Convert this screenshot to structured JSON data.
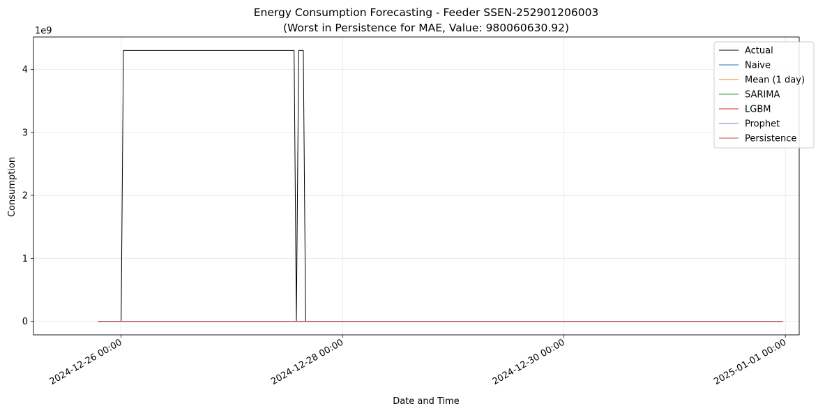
{
  "chart_data": {
    "type": "line",
    "title": "Energy Consumption Forecasting - Feeder SSEN-252901206003",
    "subtitle": "(Worst in Persistence for MAE, Value: 980060630.92)",
    "xlabel": "Date and Time",
    "ylabel": "Consumption",
    "y_offset_label": "1e9",
    "x_range": [
      "2024-12-25 05:00",
      "2025-01-01 03:00"
    ],
    "ylim": [
      -0.215,
      4.515
    ],
    "y_ticks": [
      0,
      1,
      2,
      3,
      4
    ],
    "x_ticks": [
      {
        "value": "2024-12-26 00:00",
        "label": "2024-12-26 00:00"
      },
      {
        "value": "2024-12-28 00:00",
        "label": "2024-12-28 00:00"
      },
      {
        "value": "2024-12-30 00:00",
        "label": "2024-12-30 00:00"
      },
      {
        "value": "2025-01-01 00:00",
        "label": "2025-01-01 00:00"
      }
    ],
    "grid": true,
    "legend_position": "top-right",
    "series": [
      {
        "name": "Actual",
        "color": "#000000",
        "points": [
          [
            "2024-12-25 19:00",
            0
          ],
          [
            "2024-12-26 00:00",
            0
          ],
          [
            "2024-12-26 00:30",
            4.3
          ],
          [
            "2024-12-27 13:30",
            4.3
          ],
          [
            "2024-12-27 14:00",
            0
          ],
          [
            "2024-12-27 14:30",
            4.3
          ],
          [
            "2024-12-27 15:30",
            4.3
          ],
          [
            "2024-12-27 16:00",
            0
          ],
          [
            "2024-12-31 23:30",
            0
          ]
        ]
      },
      {
        "name": "Naive",
        "color": "#1f77b4",
        "points": [
          [
            "2024-12-25 19:00",
            0
          ],
          [
            "2024-12-31 23:30",
            0
          ]
        ]
      },
      {
        "name": "Mean (1 day)",
        "color": "#ff7f0e",
        "points": [
          [
            "2024-12-25 19:00",
            0
          ],
          [
            "2024-12-31 23:30",
            0
          ]
        ]
      },
      {
        "name": "SARIMA",
        "color": "#2ca02c",
        "points": [
          [
            "2024-12-25 19:00",
            0
          ],
          [
            "2024-12-31 23:30",
            0
          ]
        ]
      },
      {
        "name": "LGBM",
        "color": "#d62728",
        "points": [
          [
            "2024-12-25 19:00",
            0
          ],
          [
            "2024-12-31 23:30",
            0
          ]
        ]
      },
      {
        "name": "Prophet",
        "color": "#9467bd",
        "points": [
          [
            "2024-12-25 19:00",
            0
          ],
          [
            "2024-12-31 23:30",
            0
          ]
        ]
      },
      {
        "name": "Persistence",
        "color": "#c44e52",
        "points": [
          [
            "2024-12-25 19:00",
            0
          ],
          [
            "2024-12-31 23:30",
            0
          ]
        ]
      }
    ]
  }
}
